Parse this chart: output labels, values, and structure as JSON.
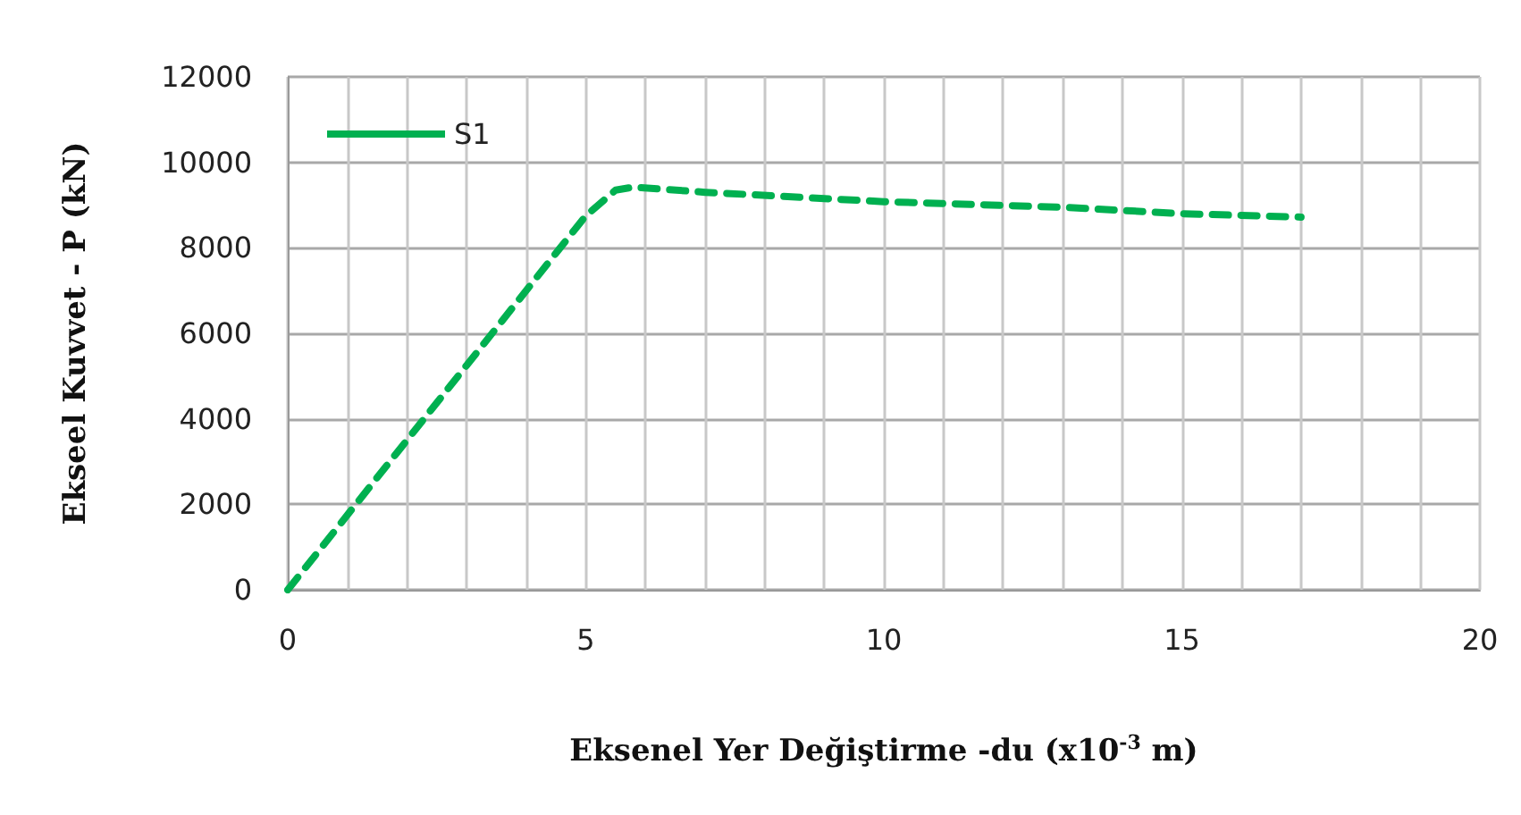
{
  "chart_data": {
    "type": "line",
    "xlabel": "Eksenel Yer Değiştirme -du (x10$^{-3}$ m)",
    "ylabel": "Ekseel Kuvvet - P (kN)",
    "series": [
      {
        "name": "S1",
        "color": "#00b050",
        "x": [
          0,
          5,
          5.5,
          5.8,
          7,
          10,
          13,
          15,
          17
        ],
        "values": [
          0,
          8750,
          9350,
          9420,
          9300,
          9080,
          8950,
          8800,
          8720
        ]
      }
    ],
    "xlim": [
      0,
      20
    ],
    "xticks": [
      0,
      {
        "value": 1,
        "label": null
      },
      {
        "value": 2,
        "label": null
      },
      {
        "value": 3,
        "label": null
      },
      {
        "value": 4,
        "label": null
      },
      5,
      {
        "value": 6,
        "label": null
      },
      {
        "value": 7,
        "label": null
      },
      {
        "value": 8,
        "label": null
      },
      {
        "value": 9,
        "label": null
      },
      10,
      {
        "value": 11,
        "label": null
      },
      {
        "value": 12,
        "label": null
      },
      {
        "value": 13,
        "label": null
      },
      {
        "value": 14,
        "label": null
      },
      15,
      {
        "value": 16,
        "label": null
      },
      {
        "value": 17,
        "label": null
      },
      {
        "value": 18,
        "label": null
      },
      {
        "value": 19,
        "label": null
      },
      20
    ],
    "ylim": [
      0,
      12000
    ],
    "yticks": [
      0,
      2000,
      4000,
      6000,
      8000,
      10000,
      12000
    ],
    "grid": true,
    "legend": "top left",
    "line_style": "dashed",
    "marker": "none"
  }
}
